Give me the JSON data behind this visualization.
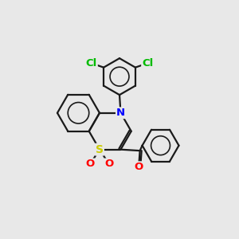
{
  "bg_color": "#e8e8e8",
  "bond_color": "#1a1a1a",
  "bond_width": 1.6,
  "atom_colors": {
    "S": "#cccc00",
    "N": "#0000ff",
    "O": "#ff0000",
    "Cl": "#00bb00",
    "C": "#1a1a1a"
  },
  "font_size": 9.5,
  "figsize": [
    3.0,
    3.0
  ],
  "dpi": 100
}
